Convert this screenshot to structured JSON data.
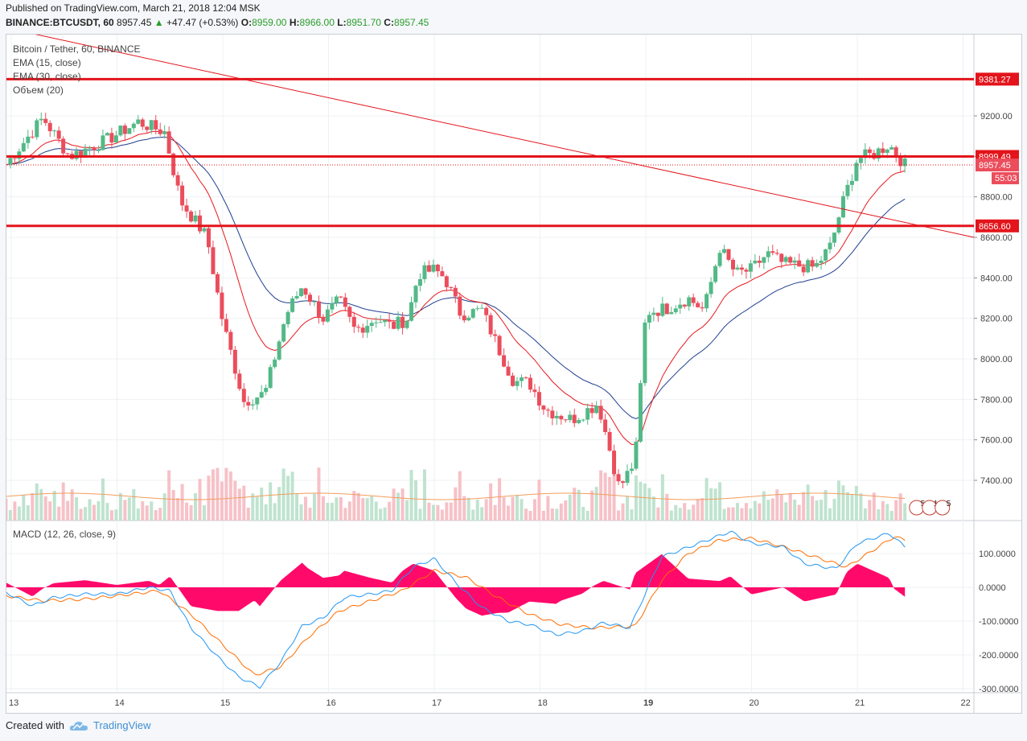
{
  "header": {
    "published": "Published on TradingView.com, March 21, 2018 12:04 MSK",
    "symbol": "BINANCE:BTCUSDT, 60",
    "last": "8957.45",
    "change": "+47.47 (+0.53%)",
    "o_label": "O:",
    "o": "8959.00",
    "h_label": "H:",
    "h": "8966.00",
    "l_label": "L:",
    "l": "8951.70",
    "c_label": "C:",
    "c": "8957.45"
  },
  "legend": {
    "title": "Bitcoin / Tether, 60, BINANCE",
    "ema15": "EMA (15, close)",
    "ema30": "EMA (30, close)",
    "volume": "Объем (20)",
    "macd": "MACD (12, 26, close, 9)"
  },
  "footer": {
    "created": "Created with",
    "brand": "TradingView"
  },
  "colors": {
    "up": "#53b987",
    "down": "#eb4d5c",
    "ema15": "#e8191f",
    "ema30": "#1f3f8f",
    "level": "#e3141b",
    "macd": "#2196f3",
    "signal": "#ff6d00",
    "hist": "#ff0a6a"
  },
  "badges": {
    "events1": "5",
    "events2": "14",
    "events3": "5"
  },
  "chart_data": {
    "type": "candlestick",
    "price_axis": {
      "min": 7250,
      "max": 9600,
      "ticks": [
        "9200.00",
        "9000.00",
        "8800.00",
        "8600.00",
        "8400.00",
        "8200.00",
        "8000.00",
        "7800.00",
        "7600.00",
        "7400.00"
      ]
    },
    "macd_axis": {
      "min": -310,
      "max": 200,
      "ticks": [
        "100.0000",
        "0.0000",
        "-100.0000",
        "-200.0000",
        "-300.0000"
      ]
    },
    "x_ticks": [
      "13",
      "14",
      "15",
      "16",
      "17",
      "18",
      "19",
      "20",
      "21",
      "22"
    ],
    "horizontal_levels": [
      {
        "value": 9381.27,
        "label": "9381.27"
      },
      {
        "value": 8999.49,
        "label": "8999.49"
      },
      {
        "value": 8656.6,
        "label": "8656.60"
      }
    ],
    "last_price": {
      "value": 8957.45,
      "label": "8957.45",
      "countdown": "55:03"
    },
    "trendline": {
      "start": [
        12.9,
        9640
      ],
      "end": [
        22.1,
        8600
      ]
    },
    "close_anchors": [
      [
        12.95,
        8960
      ],
      [
        13.3,
        9190
      ],
      [
        13.55,
        9000
      ],
      [
        13.9,
        9080
      ],
      [
        14.2,
        9170
      ],
      [
        14.45,
        9120
      ],
      [
        14.6,
        8780
      ],
      [
        14.85,
        8600
      ],
      [
        15.0,
        8180
      ],
      [
        15.2,
        7790
      ],
      [
        15.4,
        7830
      ],
      [
        15.6,
        8220
      ],
      [
        15.75,
        8360
      ],
      [
        15.95,
        8200
      ],
      [
        16.1,
        8290
      ],
      [
        16.25,
        8140
      ],
      [
        16.45,
        8200
      ],
      [
        16.6,
        8160
      ],
      [
        16.75,
        8200
      ],
      [
        16.85,
        8420
      ],
      [
        17.0,
        8440
      ],
      [
        17.1,
        8400
      ],
      [
        17.25,
        8220
      ],
      [
        17.45,
        8240
      ],
      [
        17.6,
        8060
      ],
      [
        17.75,
        7890
      ],
      [
        17.9,
        7880
      ],
      [
        18.05,
        7750
      ],
      [
        18.3,
        7700
      ],
      [
        18.55,
        7780
      ],
      [
        18.75,
        7360
      ],
      [
        18.9,
        7500
      ],
      [
        19.0,
        8230
      ],
      [
        19.2,
        8250
      ],
      [
        19.4,
        8300
      ],
      [
        19.55,
        8240
      ],
      [
        19.7,
        8550
      ],
      [
        19.85,
        8420
      ],
      [
        20.0,
        8440
      ],
      [
        20.15,
        8520
      ],
      [
        20.3,
        8470
      ],
      [
        20.45,
        8460
      ],
      [
        20.6,
        8450
      ],
      [
        20.75,
        8560
      ],
      [
        20.85,
        8750
      ],
      [
        21.0,
        8990
      ],
      [
        21.15,
        9010
      ],
      [
        21.3,
        9060
      ],
      [
        21.45,
        8957
      ]
    ],
    "macd_anchors": [
      [
        12.95,
        -15
      ],
      [
        13.2,
        -55
      ],
      [
        13.4,
        -30
      ],
      [
        13.7,
        -20
      ],
      [
        14.0,
        -20
      ],
      [
        14.3,
        0
      ],
      [
        14.5,
        -10
      ],
      [
        14.7,
        -120
      ],
      [
        14.95,
        -205
      ],
      [
        15.15,
        -265
      ],
      [
        15.35,
        -295
      ],
      [
        15.55,
        -220
      ],
      [
        15.75,
        -115
      ],
      [
        15.95,
        -90
      ],
      [
        16.15,
        -30
      ],
      [
        16.4,
        -20
      ],
      [
        16.6,
        -10
      ],
      [
        16.8,
        60
      ],
      [
        17.0,
        85
      ],
      [
        17.2,
        15
      ],
      [
        17.45,
        -60
      ],
      [
        17.7,
        -100
      ],
      [
        17.9,
        -110
      ],
      [
        18.15,
        -140
      ],
      [
        18.4,
        -130
      ],
      [
        18.6,
        -105
      ],
      [
        18.85,
        -120
      ],
      [
        18.95,
        -50
      ],
      [
        19.15,
        90
      ],
      [
        19.5,
        130
      ],
      [
        19.8,
        165
      ],
      [
        20.0,
        130
      ],
      [
        20.3,
        120
      ],
      [
        20.5,
        70
      ],
      [
        20.8,
        55
      ],
      [
        21.0,
        130
      ],
      [
        21.3,
        160
      ],
      [
        21.45,
        120
      ]
    ],
    "signal_anchors": [
      [
        12.95,
        -25
      ],
      [
        13.3,
        -40
      ],
      [
        13.7,
        -35
      ],
      [
        14.0,
        -25
      ],
      [
        14.4,
        -10
      ],
      [
        14.7,
        -80
      ],
      [
        15.0,
        -170
      ],
      [
        15.3,
        -260
      ],
      [
        15.55,
        -235
      ],
      [
        15.8,
        -150
      ],
      [
        16.1,
        -70
      ],
      [
        16.4,
        -40
      ],
      [
        16.7,
        -10
      ],
      [
        17.0,
        50
      ],
      [
        17.3,
        30
      ],
      [
        17.6,
        -30
      ],
      [
        17.9,
        -80
      ],
      [
        18.2,
        -110
      ],
      [
        18.5,
        -120
      ],
      [
        18.9,
        -115
      ],
      [
        19.15,
        20
      ],
      [
        19.4,
        100
      ],
      [
        19.7,
        140
      ],
      [
        20.0,
        145
      ],
      [
        20.3,
        120
      ],
      [
        20.6,
        90
      ],
      [
        20.9,
        60
      ],
      [
        21.1,
        100
      ],
      [
        21.35,
        150
      ],
      [
        21.45,
        140
      ]
    ]
  }
}
